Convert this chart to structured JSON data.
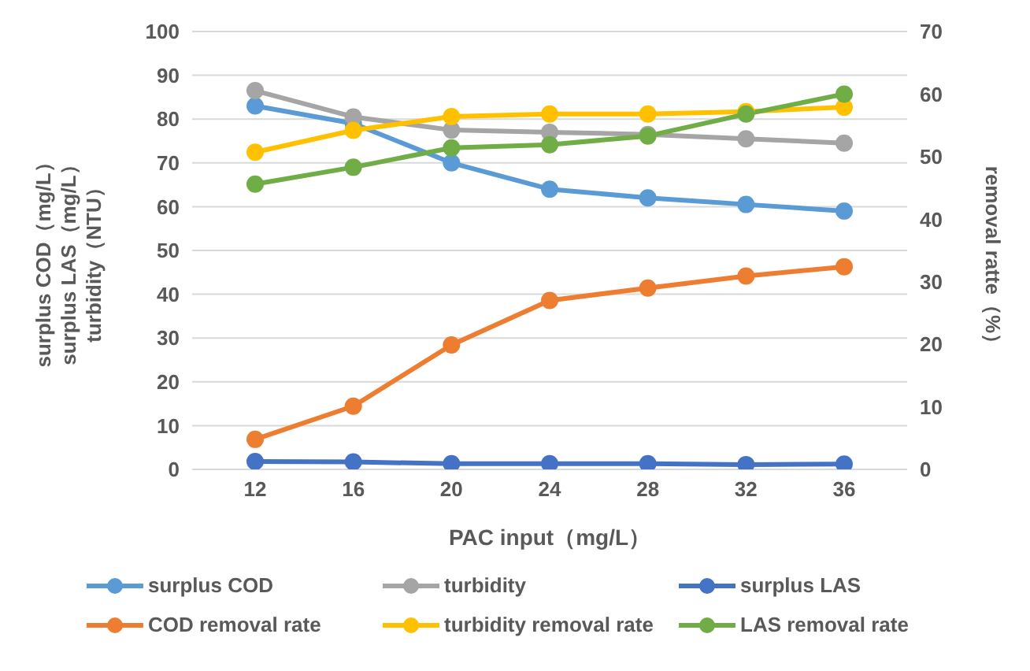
{
  "chart_data": {
    "type": "line",
    "xlabel": "PAC input（mg/L）",
    "ylabel": "surplus COD（mg/L）\nsurplus LAS（mg/L）\nturbidity（NTU）",
    "y2label": "removal ratte（%）",
    "categories": [
      "12",
      "16",
      "20",
      "24",
      "28",
      "32",
      "36"
    ],
    "series": [
      {
        "name": "surplus COD",
        "color": "#5b9bd5",
        "values": [
          83,
          79,
          70,
          64,
          62,
          60.5,
          59
        ]
      },
      {
        "name": "turbidity",
        "color": "#a5a5a5",
        "values": [
          86.5,
          80.5,
          77.5,
          77,
          76.5,
          75.5,
          74.5
        ]
      },
      {
        "name": "surplus LAS",
        "color": "#4472c4",
        "values": [
          1.8,
          1.7,
          1.3,
          1.3,
          1.3,
          1.1,
          1.2
        ]
      },
      {
        "name": "COD removal rate",
        "color": "#ed7d31",
        "values": [
          4.8,
          10.1,
          19.9,
          27,
          29,
          30.9,
          32.4
        ],
        "axis": "y2"
      },
      {
        "name": "turbidity removal rate",
        "color": "#ffc000",
        "values": [
          50.7,
          54.2,
          56.4,
          56.8,
          56.8,
          57.2,
          57.9
        ],
        "axis": "y2"
      },
      {
        "name": "LAS removal rate",
        "color": "#70ad47",
        "values": [
          45.6,
          48.3,
          51.4,
          51.9,
          53.3,
          56.8,
          60
        ],
        "axis": "y2"
      }
    ],
    "ylim": [
      0,
      100
    ],
    "yticks": [
      0,
      10,
      20,
      30,
      40,
      50,
      60,
      70,
      80,
      90,
      100
    ],
    "y2lim": [
      0,
      70
    ],
    "y2ticks": [
      0,
      10,
      20,
      30,
      40,
      50,
      60,
      70
    ],
    "grid": "y",
    "legend": "bottom",
    "marker": "circle",
    "line_style": "solid"
  }
}
